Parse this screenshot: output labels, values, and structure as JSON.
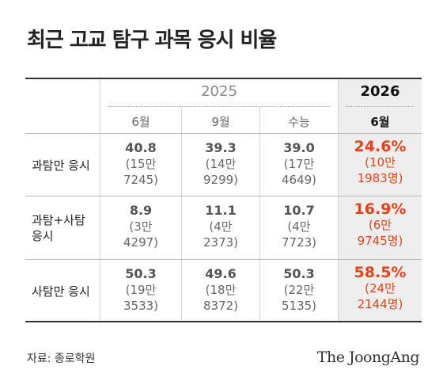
{
  "title": "최근 고교 탐구 과목 응시 비율",
  "header": {
    "year_2025": "2025",
    "year_2026": "2026",
    "months": [
      "6월",
      "9월",
      "수능",
      "6월"
    ]
  },
  "rows": [
    {
      "label": "과탐만 응시",
      "cells": [
        {
          "pct": "40.8",
          "l1": "(15만",
          "l2": "7245)"
        },
        {
          "pct": "39.3",
          "l1": "(14만",
          "l2": "9299)"
        },
        {
          "pct": "39.0",
          "l1": "(17만",
          "l2": "4649)"
        },
        {
          "pct": "24.6%",
          "l1": "(10만",
          "l2": "1983명)"
        }
      ]
    },
    {
      "label_line1": "과탐+사탐",
      "label_line2": "응시",
      "cells": [
        {
          "pct": "8.9",
          "l1": "(3만",
          "l2": "4297)"
        },
        {
          "pct": "11.1",
          "l1": "(4만",
          "l2": "2373)"
        },
        {
          "pct": "10.7",
          "l1": "(4만",
          "l2": "7723)"
        },
        {
          "pct": "16.9%",
          "l1": "(6만",
          "l2": "9745명)"
        }
      ]
    },
    {
      "label": "사탐만 응시",
      "cells": [
        {
          "pct": "50.3",
          "l1": "(19만",
          "l2": "3533)"
        },
        {
          "pct": "49.6",
          "l1": "(18만",
          "l2": "8372)"
        },
        {
          "pct": "50.3",
          "l1": "(22만",
          "l2": "5135)"
        },
        {
          "pct": "58.5%",
          "l1": "(24만",
          "l2": "2144명)"
        }
      ]
    }
  ],
  "source": "자료: 종로학원",
  "logo": "The JoongAng",
  "colors": {
    "highlight": "#e84118",
    "highlight_bg": "#eeeeee"
  }
}
